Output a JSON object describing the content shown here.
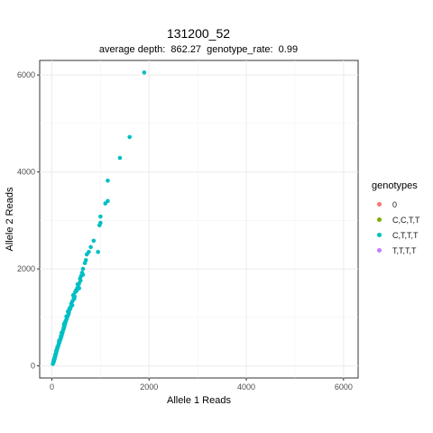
{
  "chart_data": {
    "type": "scatter",
    "title": "131200_52",
    "subtitle": "average depth:  862.27  genotype_rate:  0.99",
    "xlabel": "Allele 1 Reads",
    "ylabel": "Allele 2 Reads",
    "xlim": [
      -250,
      6300
    ],
    "ylim": [
      -250,
      6300
    ],
    "x_ticks": [
      0,
      2000,
      4000,
      6000
    ],
    "y_ticks": [
      0,
      2000,
      4000,
      6000
    ],
    "grid": true,
    "legend": {
      "title": "genotypes",
      "placement": "right",
      "entries": [
        {
          "label": "0",
          "color": "#F8766D"
        },
        {
          "label": "C,C,T,T",
          "color": "#7CAE00"
        },
        {
          "label": "C,T,T,T",
          "color": "#00BFC4"
        },
        {
          "label": "T,T,T,T",
          "color": "#C77CFF"
        }
      ]
    },
    "series": [
      {
        "name": "C,T,T,T",
        "color": "#00BFC4",
        "points": [
          [
            1900,
            6050
          ],
          [
            1600,
            4720
          ],
          [
            1400,
            4290
          ],
          [
            1150,
            3820
          ],
          [
            1150,
            3400
          ],
          [
            1100,
            3350
          ],
          [
            1000,
            3080
          ],
          [
            1000,
            2950
          ],
          [
            980,
            2900
          ],
          [
            950,
            2350
          ],
          [
            860,
            2580
          ],
          [
            800,
            2450
          ],
          [
            760,
            2350
          ],
          [
            720,
            2300
          ],
          [
            680,
            2120
          ],
          [
            640,
            2000
          ],
          [
            620,
            1920
          ],
          [
            600,
            1850
          ],
          [
            580,
            1800
          ],
          [
            560,
            1700
          ],
          [
            550,
            1620
          ],
          [
            530,
            1680
          ],
          [
            520,
            1600
          ],
          [
            500,
            1560
          ],
          [
            480,
            1520
          ],
          [
            470,
            1430
          ],
          [
            450,
            1400
          ],
          [
            440,
            1460
          ],
          [
            420,
            1330
          ],
          [
            400,
            1280
          ],
          [
            390,
            1220
          ],
          [
            380,
            1180
          ],
          [
            360,
            1150
          ],
          [
            350,
            1100
          ],
          [
            340,
            1060
          ],
          [
            320,
            1010
          ],
          [
            300,
            960
          ],
          [
            290,
            930
          ],
          [
            280,
            900
          ],
          [
            270,
            860
          ],
          [
            260,
            820
          ],
          [
            250,
            790
          ],
          [
            240,
            760
          ],
          [
            230,
            730
          ],
          [
            220,
            690
          ],
          [
            210,
            660
          ],
          [
            200,
            620
          ],
          [
            190,
            590
          ],
          [
            180,
            560
          ],
          [
            170,
            530
          ],
          [
            160,
            500
          ],
          [
            150,
            470
          ],
          [
            140,
            440
          ],
          [
            130,
            410
          ],
          [
            120,
            380
          ],
          [
            110,
            350
          ],
          [
            100,
            320
          ],
          [
            95,
            300
          ],
          [
            90,
            280
          ],
          [
            85,
            260
          ],
          [
            80,
            240
          ],
          [
            75,
            220
          ],
          [
            70,
            200
          ],
          [
            65,
            180
          ],
          [
            60,
            160
          ],
          [
            55,
            150
          ],
          [
            50,
            130
          ],
          [
            45,
            110
          ],
          [
            40,
            100
          ],
          [
            35,
            80
          ],
          [
            30,
            60
          ],
          [
            25,
            50
          ],
          [
            20,
            40
          ],
          [
            330,
            1120
          ],
          [
            310,
            1000
          ],
          [
            270,
            900
          ],
          [
            245,
            800
          ],
          [
            215,
            700
          ],
          [
            185,
            610
          ],
          [
            165,
            540
          ],
          [
            145,
            480
          ],
          [
            125,
            400
          ],
          [
            105,
            340
          ],
          [
            420,
            1250
          ],
          [
            460,
            1380
          ],
          [
            510,
            1550
          ],
          [
            560,
            1600
          ],
          [
            590,
            1760
          ],
          [
            640,
            1880
          ],
          [
            700,
            2180
          ],
          [
            360,
            1180
          ],
          [
            300,
            1020
          ],
          [
            250,
            860
          ],
          [
            200,
            680
          ],
          [
            150,
            520
          ],
          [
            115,
            390
          ],
          [
            90,
            310
          ],
          [
            70,
            230
          ],
          [
            55,
            170
          ],
          [
            40,
            120
          ]
        ]
      }
    ]
  }
}
